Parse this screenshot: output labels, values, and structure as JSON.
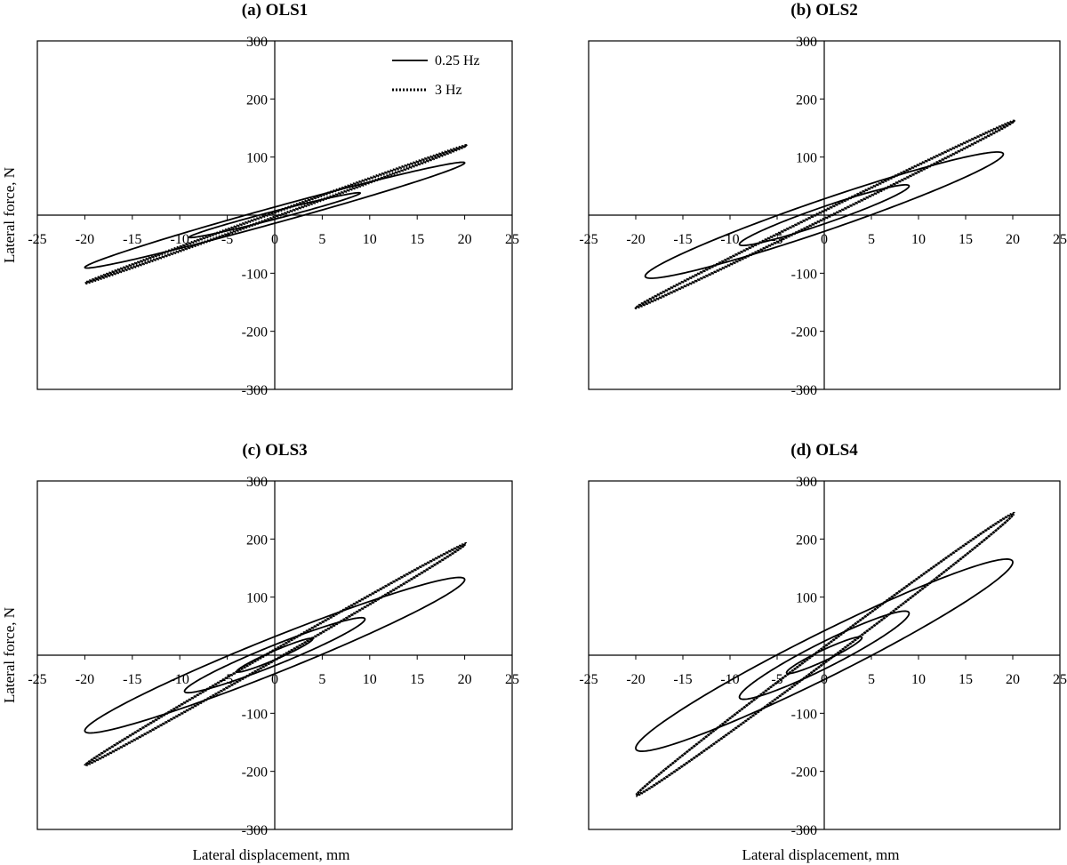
{
  "chart_data": [
    {
      "type": "line",
      "title": "(a) OLS1",
      "xlabel": "",
      "ylabel": "Lateral force, N",
      "xlim": [
        -25,
        25
      ],
      "ylim": [
        -300,
        300
      ],
      "xticks": [
        "-25",
        "-20",
        "-15",
        "-10",
        "-5",
        "0",
        "5",
        "10",
        "15",
        "20",
        "25"
      ],
      "yticks": [
        "300",
        "200",
        "100",
        "",
        "-100",
        "-200",
        "-300"
      ],
      "legend": {
        "position": "top-right",
        "entries": [
          "0.25 Hz",
          "3 Hz"
        ]
      },
      "series": [
        {
          "name": "0.25 Hz",
          "style": "solid",
          "loops": [
            {
              "amplitude": 20,
              "peak_force": 90,
              "intercept": 14
            },
            {
              "amplitude": 9,
              "peak_force": 38,
              "intercept": 7
            }
          ]
        },
        {
          "name": "3 Hz",
          "style": "dotted",
          "loops": [
            {
              "amplitude": 20,
              "peak_force": 118,
              "intercept": 4
            }
          ]
        }
      ]
    },
    {
      "type": "line",
      "title": "(b) OLS2",
      "xlabel": "",
      "ylabel": "",
      "xlim": [
        -25,
        25
      ],
      "ylim": [
        -300,
        300
      ],
      "xticks": [
        "-25",
        "-20",
        "-15",
        "-10",
        "-5",
        "0",
        "5",
        "10",
        "15",
        "20",
        "25"
      ],
      "yticks": [
        "300",
        "200",
        "100",
        "",
        "-100",
        "-200",
        "-300"
      ],
      "series": [
        {
          "name": "0.25 Hz",
          "style": "solid",
          "loops": [
            {
              "amplitude": 19,
              "peak_force": 105,
              "intercept": 28
            },
            {
              "amplitude": 9,
              "peak_force": 50,
              "intercept": 15
            }
          ]
        },
        {
          "name": "3 Hz",
          "style": "dotted",
          "loops": [
            {
              "amplitude": 20,
              "peak_force": 160,
              "intercept": 7
            }
          ]
        }
      ]
    },
    {
      "type": "line",
      "title": "(c) OLS3",
      "xlabel": "Lateral displacement, mm",
      "ylabel": "Lateral force, N",
      "xlim": [
        -25,
        25
      ],
      "ylim": [
        -300,
        300
      ],
      "xticks": [
        "-25",
        "-20",
        "-15",
        "-10",
        "-5",
        "0",
        "5",
        "10",
        "15",
        "20",
        "25"
      ],
      "yticks": [
        "300",
        "200",
        "100",
        "",
        "-100",
        "-200",
        "-300"
      ],
      "series": [
        {
          "name": "0.25 Hz",
          "style": "solid",
          "loops": [
            {
              "amplitude": 20,
              "peak_force": 130,
              "intercept": 32
            },
            {
              "amplitude": 9.5,
              "peak_force": 62,
              "intercept": 18
            },
            {
              "amplitude": 4,
              "peak_force": 28,
              "intercept": 8
            }
          ]
        },
        {
          "name": "3 Hz",
          "style": "dotted",
          "loops": [
            {
              "amplitude": 20,
              "peak_force": 190,
              "intercept": 9
            }
          ]
        }
      ]
    },
    {
      "type": "line",
      "title": "(d) OLS4",
      "xlabel": "Lateral displacement, mm",
      "ylabel": "",
      "xlim": [
        -25,
        25
      ],
      "ylim": [
        -300,
        300
      ],
      "xticks": [
        "-25",
        "-20",
        "-15",
        "-10",
        "-5",
        "0",
        "5",
        "10",
        "15",
        "20",
        "25"
      ],
      "yticks": [
        "300",
        "200",
        "100",
        "",
        "-100",
        "-200",
        "-300"
      ],
      "series": [
        {
          "name": "0.25 Hz",
          "style": "solid",
          "loops": [
            {
              "amplitude": 20,
              "peak_force": 160,
              "intercept": 42
            },
            {
              "amplitude": 9,
              "peak_force": 72,
              "intercept": 24
            },
            {
              "amplitude": 4,
              "peak_force": 30,
              "intercept": 10
            }
          ]
        },
        {
          "name": "3 Hz",
          "style": "dotted",
          "loops": [
            {
              "amplitude": 20,
              "peak_force": 242,
              "intercept": 14
            }
          ]
        }
      ]
    }
  ]
}
